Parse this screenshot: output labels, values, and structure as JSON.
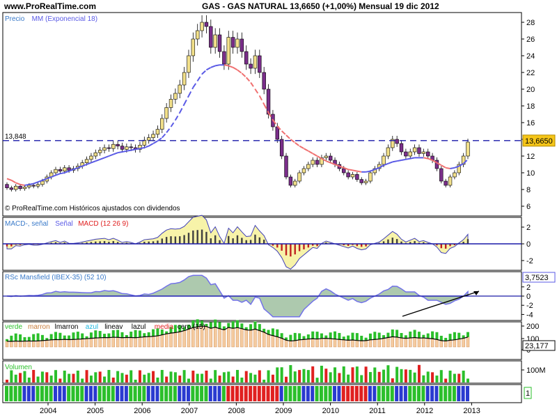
{
  "header": {
    "site": "www.ProRealTime.com",
    "title": "GAS - GAS NATURAL     13,6650 (+1,00%)    Mensual  19 dic 2012"
  },
  "chart_data": [
    {
      "type": "candlestick",
      "panel": "price",
      "legend": [
        "Precio",
        "MM (Exponencial 18)"
      ],
      "legend_colors": [
        "#3a7ac9",
        "#5a5ae6"
      ],
      "ylim": [
        5,
        29
      ],
      "yticks": [
        6,
        8,
        10,
        12,
        14,
        16,
        18,
        20,
        22,
        24,
        26,
        28
      ],
      "hline": {
        "value": 13.848,
        "label": "13,848"
      },
      "last_value": "13,6650",
      "footnote": "© ProRealTime.com Históricos ajustados con dividendos",
      "x_labels": [
        "2004",
        "2005",
        "2006",
        "2007",
        "2008",
        "2009",
        "2010",
        "2011",
        "2012",
        "2013"
      ],
      "closes": [
        8.2,
        8.0,
        8.4,
        8.1,
        8.3,
        8.5,
        8.4,
        8.6,
        9.0,
        9.5,
        10.0,
        10.4,
        10.2,
        10.6,
        10.3,
        10.5,
        10.8,
        11.2,
        11.6,
        12.0,
        12.4,
        12.7,
        13.0,
        12.9,
        13.4,
        13.2,
        12.8,
        13.1,
        13.0,
        12.8,
        13.3,
        13.9,
        14.2,
        14.6,
        15.2,
        16.5,
        17.8,
        18.8,
        19.5,
        20.5,
        22.0,
        24.0,
        26.0,
        27.0,
        28.0,
        27.5,
        25.0,
        26.5,
        24.5,
        23.0,
        26.2,
        25.0,
        26.0,
        24.5,
        23.0,
        22.5,
        24.0,
        22.0,
        20.0,
        17.0,
        15.5,
        14.0,
        12.0,
        9.5,
        8.5,
        9.0,
        10.0,
        10.5,
        11.0,
        11.5,
        11.0,
        11.8,
        12.0,
        11.5,
        11.0,
        10.5,
        10.0,
        9.5,
        9.8,
        9.2,
        8.8,
        9.0,
        10.0,
        10.5,
        11.0,
        12.0,
        13.0,
        14.0,
        13.5,
        12.5,
        12.0,
        12.5,
        13.0,
        12.3,
        12.5,
        12.0,
        11.5,
        10.5,
        9.0,
        8.5,
        9.5,
        10.0,
        11.0,
        12.0,
        13.665
      ],
      "ema18": [
        9.3,
        9.1,
        8.8,
        8.6,
        8.5,
        8.6,
        8.7,
        8.9,
        9.1,
        9.3,
        9.5,
        9.7,
        9.9,
        10.0,
        10.2,
        10.4,
        10.6,
        10.8,
        11.0,
        11.2,
        11.4,
        11.6,
        11.8,
        12.0,
        12.2,
        12.4,
        12.5,
        12.6,
        12.7,
        12.8,
        12.9,
        13.0,
        13.2,
        13.5,
        13.8,
        14.2,
        14.8,
        15.5,
        16.3,
        17.2,
        18.2,
        19.2,
        20.2,
        21.0,
        21.8,
        22.3,
        22.6,
        22.8,
        22.9,
        22.9,
        22.8,
        22.6,
        22.3,
        21.9,
        21.4,
        20.8,
        20.0,
        19.2,
        18.2,
        17.2,
        16.3,
        15.6,
        15.0,
        14.5,
        14.0,
        13.6,
        13.2,
        12.9,
        12.6,
        12.3,
        12.0,
        11.7,
        11.4,
        11.2,
        11.0,
        10.8,
        10.6,
        10.4,
        10.3,
        10.2,
        10.1,
        10.1,
        10.2,
        10.4,
        10.6,
        10.9,
        11.1,
        11.3,
        11.4,
        11.5,
        11.6,
        11.7,
        11.8,
        11.8,
        11.8,
        11.7,
        11.5,
        11.2,
        10.9,
        10.6,
        10.5,
        10.6,
        10.8,
        11.1,
        11.6
      ]
    },
    {
      "type": "area",
      "panel": "macd",
      "legend": [
        "MACD-, señal",
        "Señal",
        "MACD (12 26 9)"
      ],
      "legend_colors": [
        "#3a7ac9",
        "#5a5ae6",
        "#e02020"
      ],
      "ylim": [
        -3,
        3
      ],
      "yticks": [
        2,
        0,
        -2
      ]
    },
    {
      "type": "area",
      "panel": "rsc",
      "legend": [
        "RSc Mansfield (IBEX-35) (52 10)"
      ],
      "legend_colors": [
        "#3a7ac9"
      ],
      "ylim": [
        -5,
        5
      ],
      "yticks": [
        2,
        0,
        -2,
        -4
      ],
      "last_value": "3,7523"
    },
    {
      "type": "bar",
      "panel": "oscillator",
      "legend": [
        "verde",
        "marron",
        "lmarron",
        "azul",
        "lineav",
        "lazul",
        "media",
        "cero (15)"
      ],
      "legend_colors": [
        "#2bbf2b",
        "#c87d3c",
        "#000000",
        "#1fb8e0",
        "#000000",
        "#000000",
        "#e02020",
        "#000000"
      ],
      "yticks": [
        200,
        100,
        0
      ],
      "last_value": "23,177"
    },
    {
      "type": "bar",
      "panel": "volume",
      "legend": [
        "Volumen"
      ],
      "legend_colors": [
        "#2bbf2b"
      ],
      "yticks_label": "100M"
    },
    {
      "type": "bar",
      "panel": "signal",
      "last_value": "1"
    }
  ]
}
